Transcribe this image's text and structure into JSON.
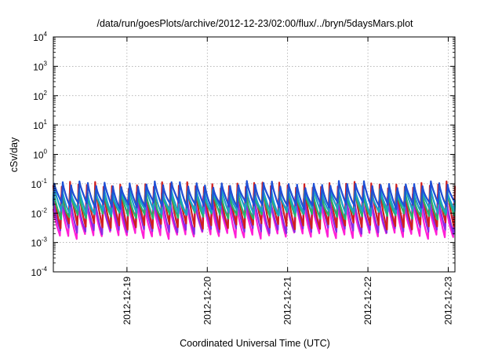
{
  "chart_data": {
    "type": "line",
    "title": "/data/run/goesPlots/archive/2012-12-23/02:00/flux/../bryn/5daysMars.plot",
    "xlabel": "Coordinated Universal Time (UTC)",
    "ylabel": "cSv/day",
    "yscale": "log",
    "ylim": [
      0.0001,
      10000
    ],
    "y_ticks": [
      {
        "base": "10",
        "exp": "-4"
      },
      {
        "base": "10",
        "exp": "-3"
      },
      {
        "base": "10",
        "exp": "-2"
      },
      {
        "base": "10",
        "exp": "-1"
      },
      {
        "base": "10",
        "exp": "0"
      },
      {
        "base": "10",
        "exp": "1"
      },
      {
        "base": "10",
        "exp": "2"
      },
      {
        "base": "10",
        "exp": "3"
      },
      {
        "base": "10",
        "exp": "4"
      }
    ],
    "xlim": [
      "2012-12-18T02:00",
      "2012-12-23T02:00"
    ],
    "x_ticks": [
      "2012-12-19",
      "2012-12-20",
      "2012-12-21",
      "2012-12-22",
      "2012-12-23"
    ],
    "grid": true,
    "legend": "none",
    "pulse_period_hours": 2.5,
    "series": [
      {
        "color": "#1f4fd6",
        "peak": 0.1,
        "trough": 0.018
      },
      {
        "color": "#1aa0c8",
        "peak": 0.065,
        "trough": 0.011
      },
      {
        "color": "#27b36b",
        "peak": 0.05,
        "trough": 0.008
      },
      {
        "color": "#d11f1f",
        "peak": 0.09,
        "trough": 0.0035
      },
      {
        "color": "#8a2be2",
        "peak": 0.04,
        "trough": 0.0025
      },
      {
        "color": "#ff1fd6",
        "peak": 0.03,
        "trough": 0.0017
      }
    ]
  }
}
